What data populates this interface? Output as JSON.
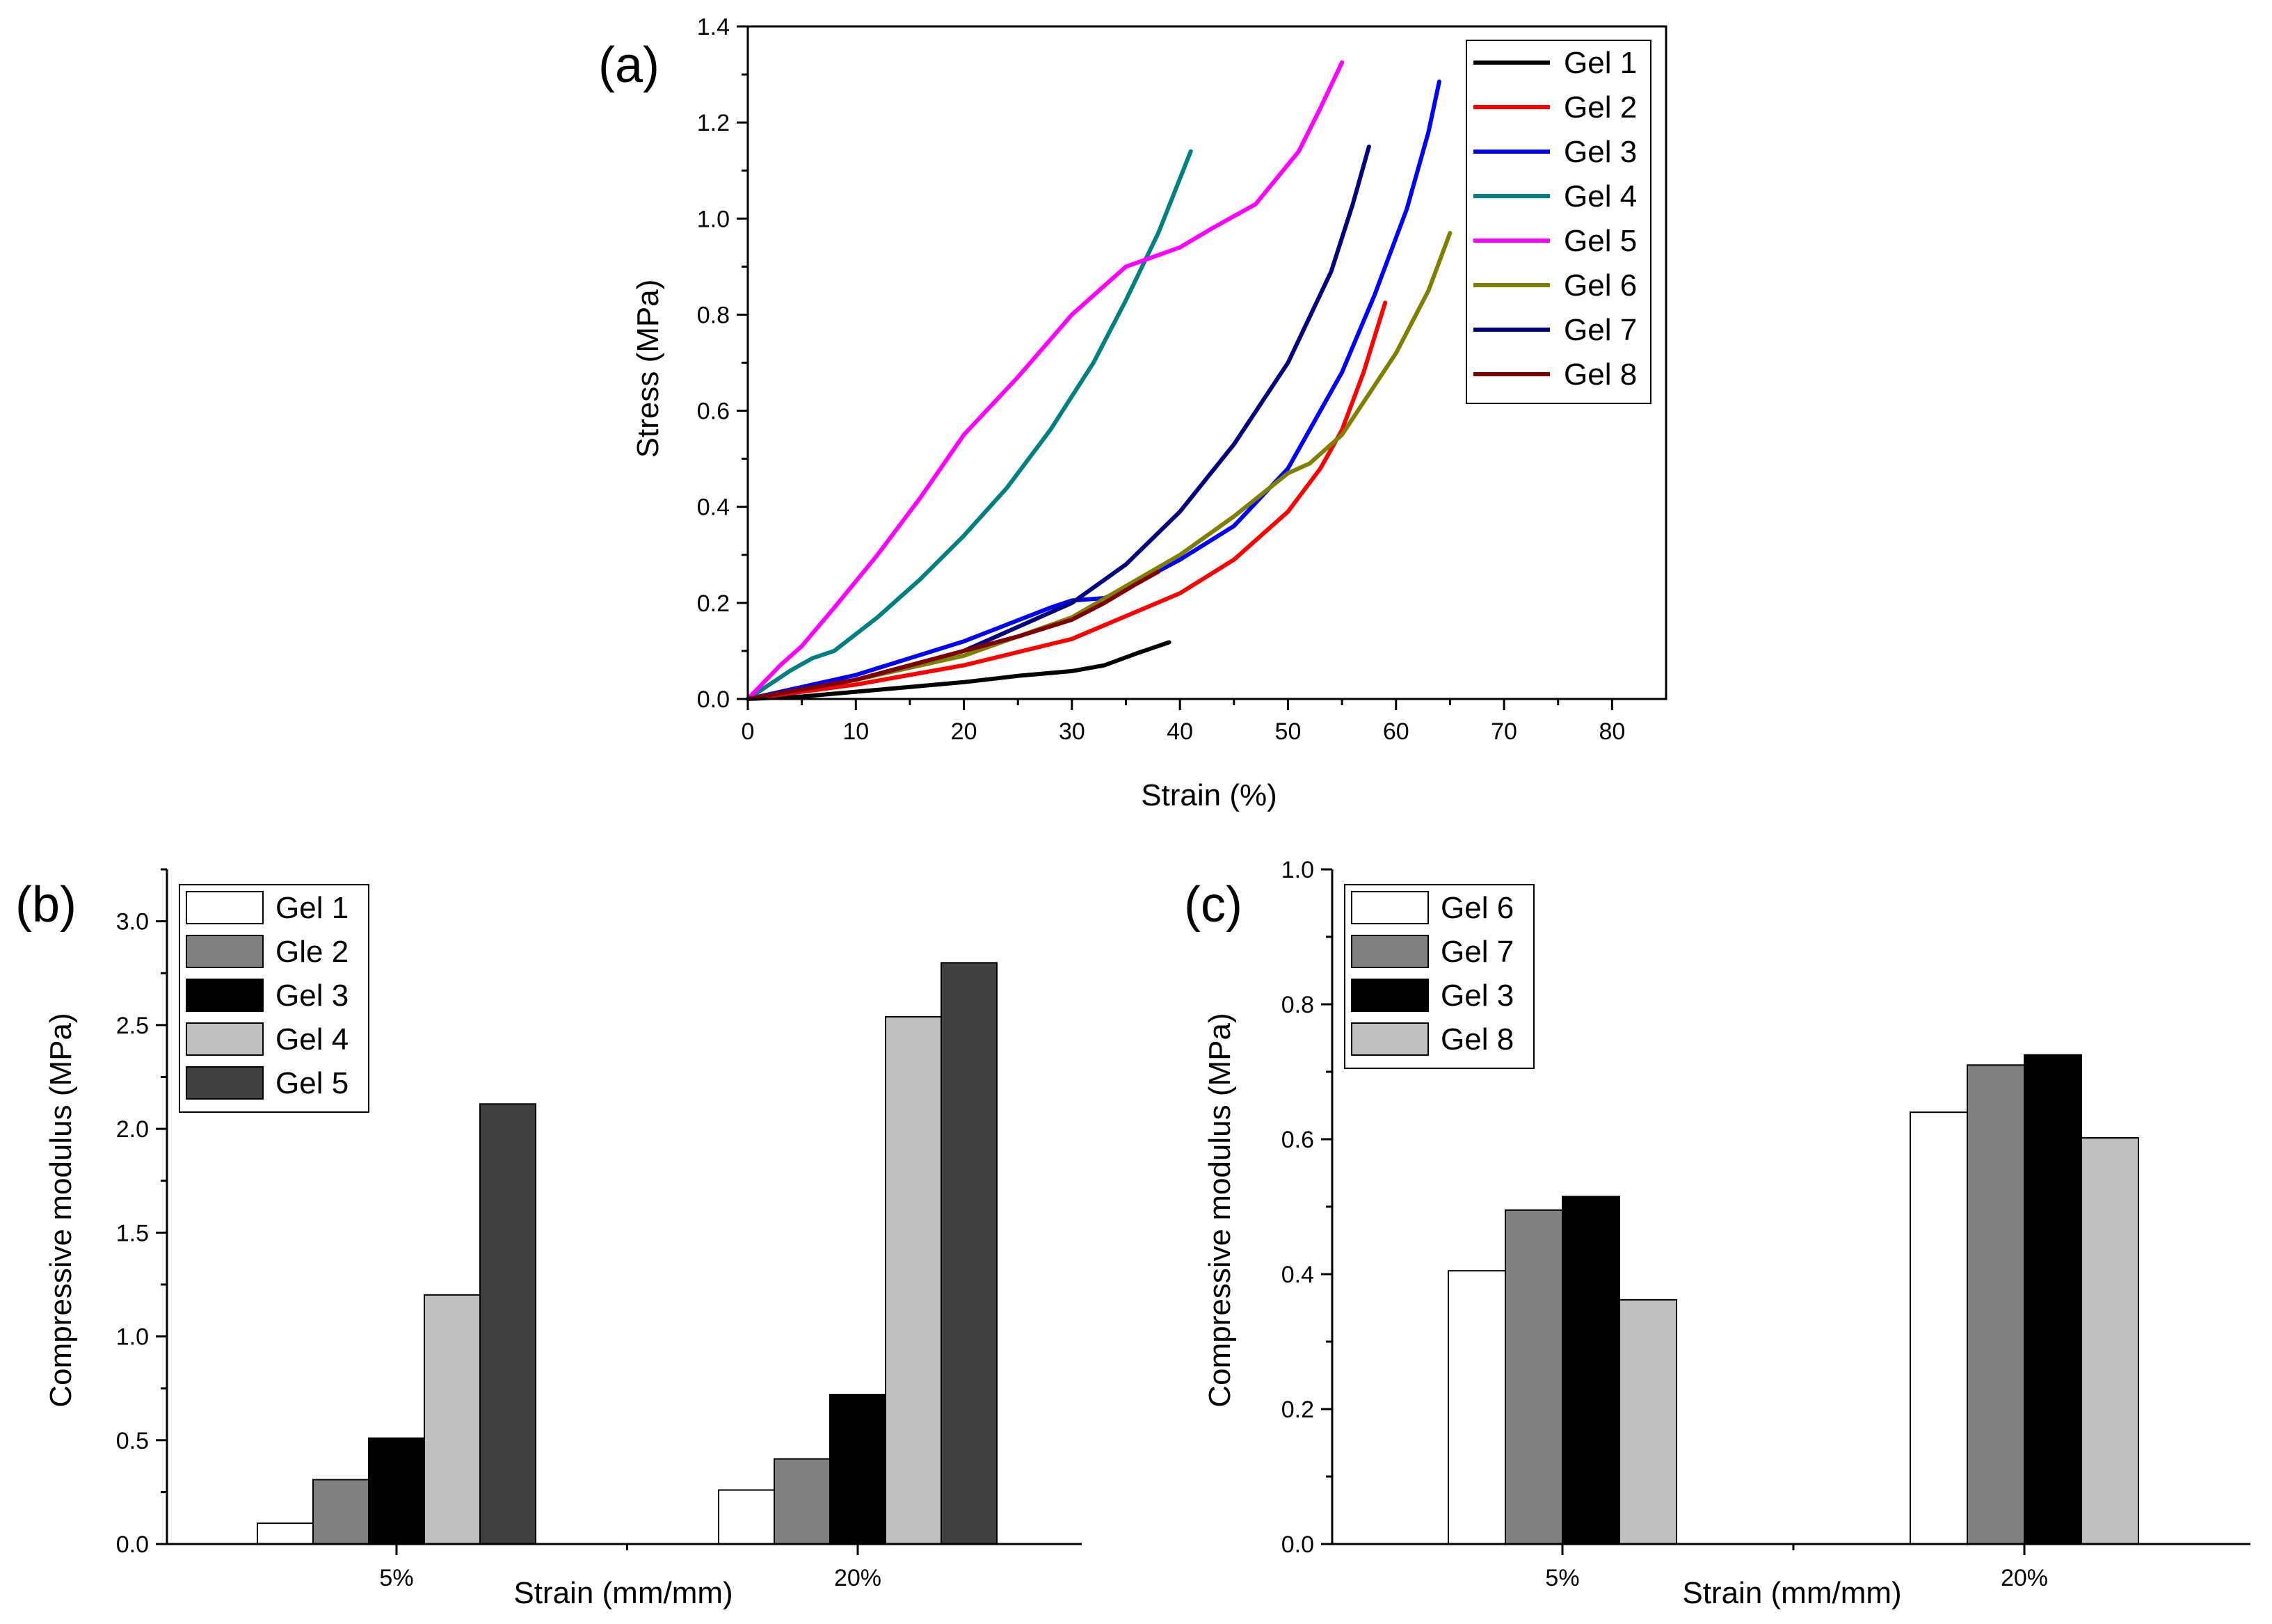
{
  "chart_data": [
    {
      "panel": "(a)",
      "type": "line",
      "xlabel": "Strain (%)",
      "ylabel": "Stress (MPa)",
      "xlim": [
        0,
        85
      ],
      "ylim": [
        0,
        1.4
      ],
      "xticks": [
        0,
        10,
        20,
        30,
        40,
        50,
        60,
        70,
        80
      ],
      "yticks": [
        "0.0",
        "0.2",
        "0.4",
        "0.6",
        "0.8",
        "1.0",
        "1.2",
        "1.4"
      ],
      "legend_position": "top-right",
      "series": [
        {
          "name": "Gel 1",
          "color": "#000000",
          "points": [
            [
              0,
              0
            ],
            [
              5,
              0.005
            ],
            [
              10,
              0.015
            ],
            [
              15,
              0.025
            ],
            [
              20,
              0.035
            ],
            [
              25,
              0.048
            ],
            [
              30,
              0.058
            ],
            [
              33,
              0.07
            ],
            [
              36,
              0.095
            ],
            [
              39,
              0.118
            ]
          ]
        },
        {
          "name": "Gel 2",
          "color": "#ff0000",
          "points": [
            [
              0,
              0
            ],
            [
              10,
              0.03
            ],
            [
              20,
              0.07
            ],
            [
              30,
              0.125
            ],
            [
              40,
              0.22
            ],
            [
              45,
              0.29
            ],
            [
              50,
              0.39
            ],
            [
              53,
              0.48
            ],
            [
              55,
              0.56
            ],
            [
              57,
              0.68
            ],
            [
              59,
              0.825
            ]
          ]
        },
        {
          "name": "Gel 3",
          "color": "#0000ff",
          "points": [
            [
              0,
              0
            ],
            [
              10,
              0.05
            ],
            [
              20,
              0.12
            ],
            [
              28,
              0.19
            ],
            [
              30,
              0.205
            ],
            [
              33,
              0.21
            ],
            [
              35,
              0.23
            ],
            [
              40,
              0.29
            ],
            [
              45,
              0.36
            ],
            [
              50,
              0.48
            ],
            [
              55,
              0.68
            ],
            [
              58,
              0.84
            ],
            [
              61,
              1.02
            ],
            [
              63,
              1.18
            ],
            [
              64,
              1.285
            ]
          ]
        },
        {
          "name": "Gel 4",
          "color": "#008080",
          "points": [
            [
              0,
              0
            ],
            [
              4,
              0.06
            ],
            [
              6,
              0.085
            ],
            [
              8,
              0.1
            ],
            [
              12,
              0.17
            ],
            [
              16,
              0.25
            ],
            [
              20,
              0.34
            ],
            [
              24,
              0.44
            ],
            [
              28,
              0.56
            ],
            [
              32,
              0.7
            ],
            [
              35,
              0.83
            ],
            [
              38,
              0.97
            ],
            [
              41,
              1.14
            ]
          ]
        },
        {
          "name": "Gel 5",
          "color": "#ff00ff",
          "points": [
            [
              0,
              0
            ],
            [
              3,
              0.07
            ],
            [
              5,
              0.11
            ],
            [
              8,
              0.19
            ],
            [
              12,
              0.3
            ],
            [
              16,
              0.42
            ],
            [
              20,
              0.55
            ],
            [
              25,
              0.67
            ],
            [
              30,
              0.8
            ],
            [
              35,
              0.9
            ],
            [
              40,
              0.94
            ],
            [
              43,
              0.98
            ],
            [
              47,
              1.03
            ],
            [
              51,
              1.14
            ],
            [
              53,
              1.23
            ],
            [
              55,
              1.325
            ]
          ]
        },
        {
          "name": "Gel 6",
          "color": "#808000",
          "points": [
            [
              0,
              0
            ],
            [
              10,
              0.04
            ],
            [
              20,
              0.09
            ],
            [
              30,
              0.17
            ],
            [
              40,
              0.3
            ],
            [
              45,
              0.38
            ],
            [
              50,
              0.47
            ],
            [
              52,
              0.49
            ],
            [
              55,
              0.55
            ],
            [
              60,
              0.72
            ],
            [
              63,
              0.85
            ],
            [
              65,
              0.97
            ]
          ]
        },
        {
          "name": "Gel 7",
          "color": "#000080",
          "points": [
            [
              0,
              0
            ],
            [
              10,
              0.04
            ],
            [
              20,
              0.1
            ],
            [
              30,
              0.2
            ],
            [
              35,
              0.28
            ],
            [
              40,
              0.39
            ],
            [
              45,
              0.53
            ],
            [
              50,
              0.7
            ],
            [
              54,
              0.89
            ],
            [
              56,
              1.03
            ],
            [
              57.5,
              1.15
            ]
          ]
        },
        {
          "name": "Gel 8",
          "color": "#800000",
          "points": [
            [
              0,
              0
            ],
            [
              10,
              0.04
            ],
            [
              20,
              0.1
            ],
            [
              25,
              0.13
            ],
            [
              30,
              0.165
            ],
            [
              33,
              0.2
            ],
            [
              36,
              0.24
            ],
            [
              38,
              0.265
            ]
          ]
        }
      ]
    },
    {
      "panel": "(b)",
      "type": "bar",
      "xlabel": "Strain (mm/mm)",
      "ylabel": "Compressive modulus (MPa)",
      "ylim": [
        0,
        3.25
      ],
      "yticks": [
        "0.0",
        "0.5",
        "1.0",
        "1.5",
        "2.0",
        "2.5",
        "3.0"
      ],
      "categories": [
        "5%",
        "20%"
      ],
      "legend_position": "top-left",
      "series": [
        {
          "name": "Gel 1",
          "color": "#ffffff",
          "values": [
            0.1,
            0.26
          ]
        },
        {
          "name": "Gle 2",
          "color": "#808080",
          "values": [
            0.31,
            0.41
          ]
        },
        {
          "name": "Gel 3",
          "color": "#000000",
          "values": [
            0.51,
            0.72
          ]
        },
        {
          "name": "Gel 4",
          "color": "#c0c0c0",
          "values": [
            1.2,
            2.54
          ]
        },
        {
          "name": "Gel 5",
          "color": "#404040",
          "values": [
            2.12,
            2.8
          ]
        }
      ]
    },
    {
      "panel": "(c)",
      "type": "bar",
      "xlabel": "Strain (mm/mm)",
      "ylabel": "Compressive modulus (MPa)",
      "ylim": [
        0,
        1.0
      ],
      "yticks": [
        "0.0",
        "0.2",
        "0.4",
        "0.6",
        "0.8",
        "1.0"
      ],
      "categories": [
        "5%",
        "20%"
      ],
      "legend_position": "top-left",
      "series": [
        {
          "name": "Gel 6",
          "color": "#ffffff",
          "values": [
            0.405,
            0.64
          ]
        },
        {
          "name": "Gel 7",
          "color": "#808080",
          "values": [
            0.495,
            0.71
          ]
        },
        {
          "name": "Gel 3",
          "color": "#000000",
          "values": [
            0.515,
            0.725
          ]
        },
        {
          "name": "Gel 8",
          "color": "#c0c0c0",
          "values": [
            0.362,
            0.602
          ]
        }
      ]
    }
  ]
}
